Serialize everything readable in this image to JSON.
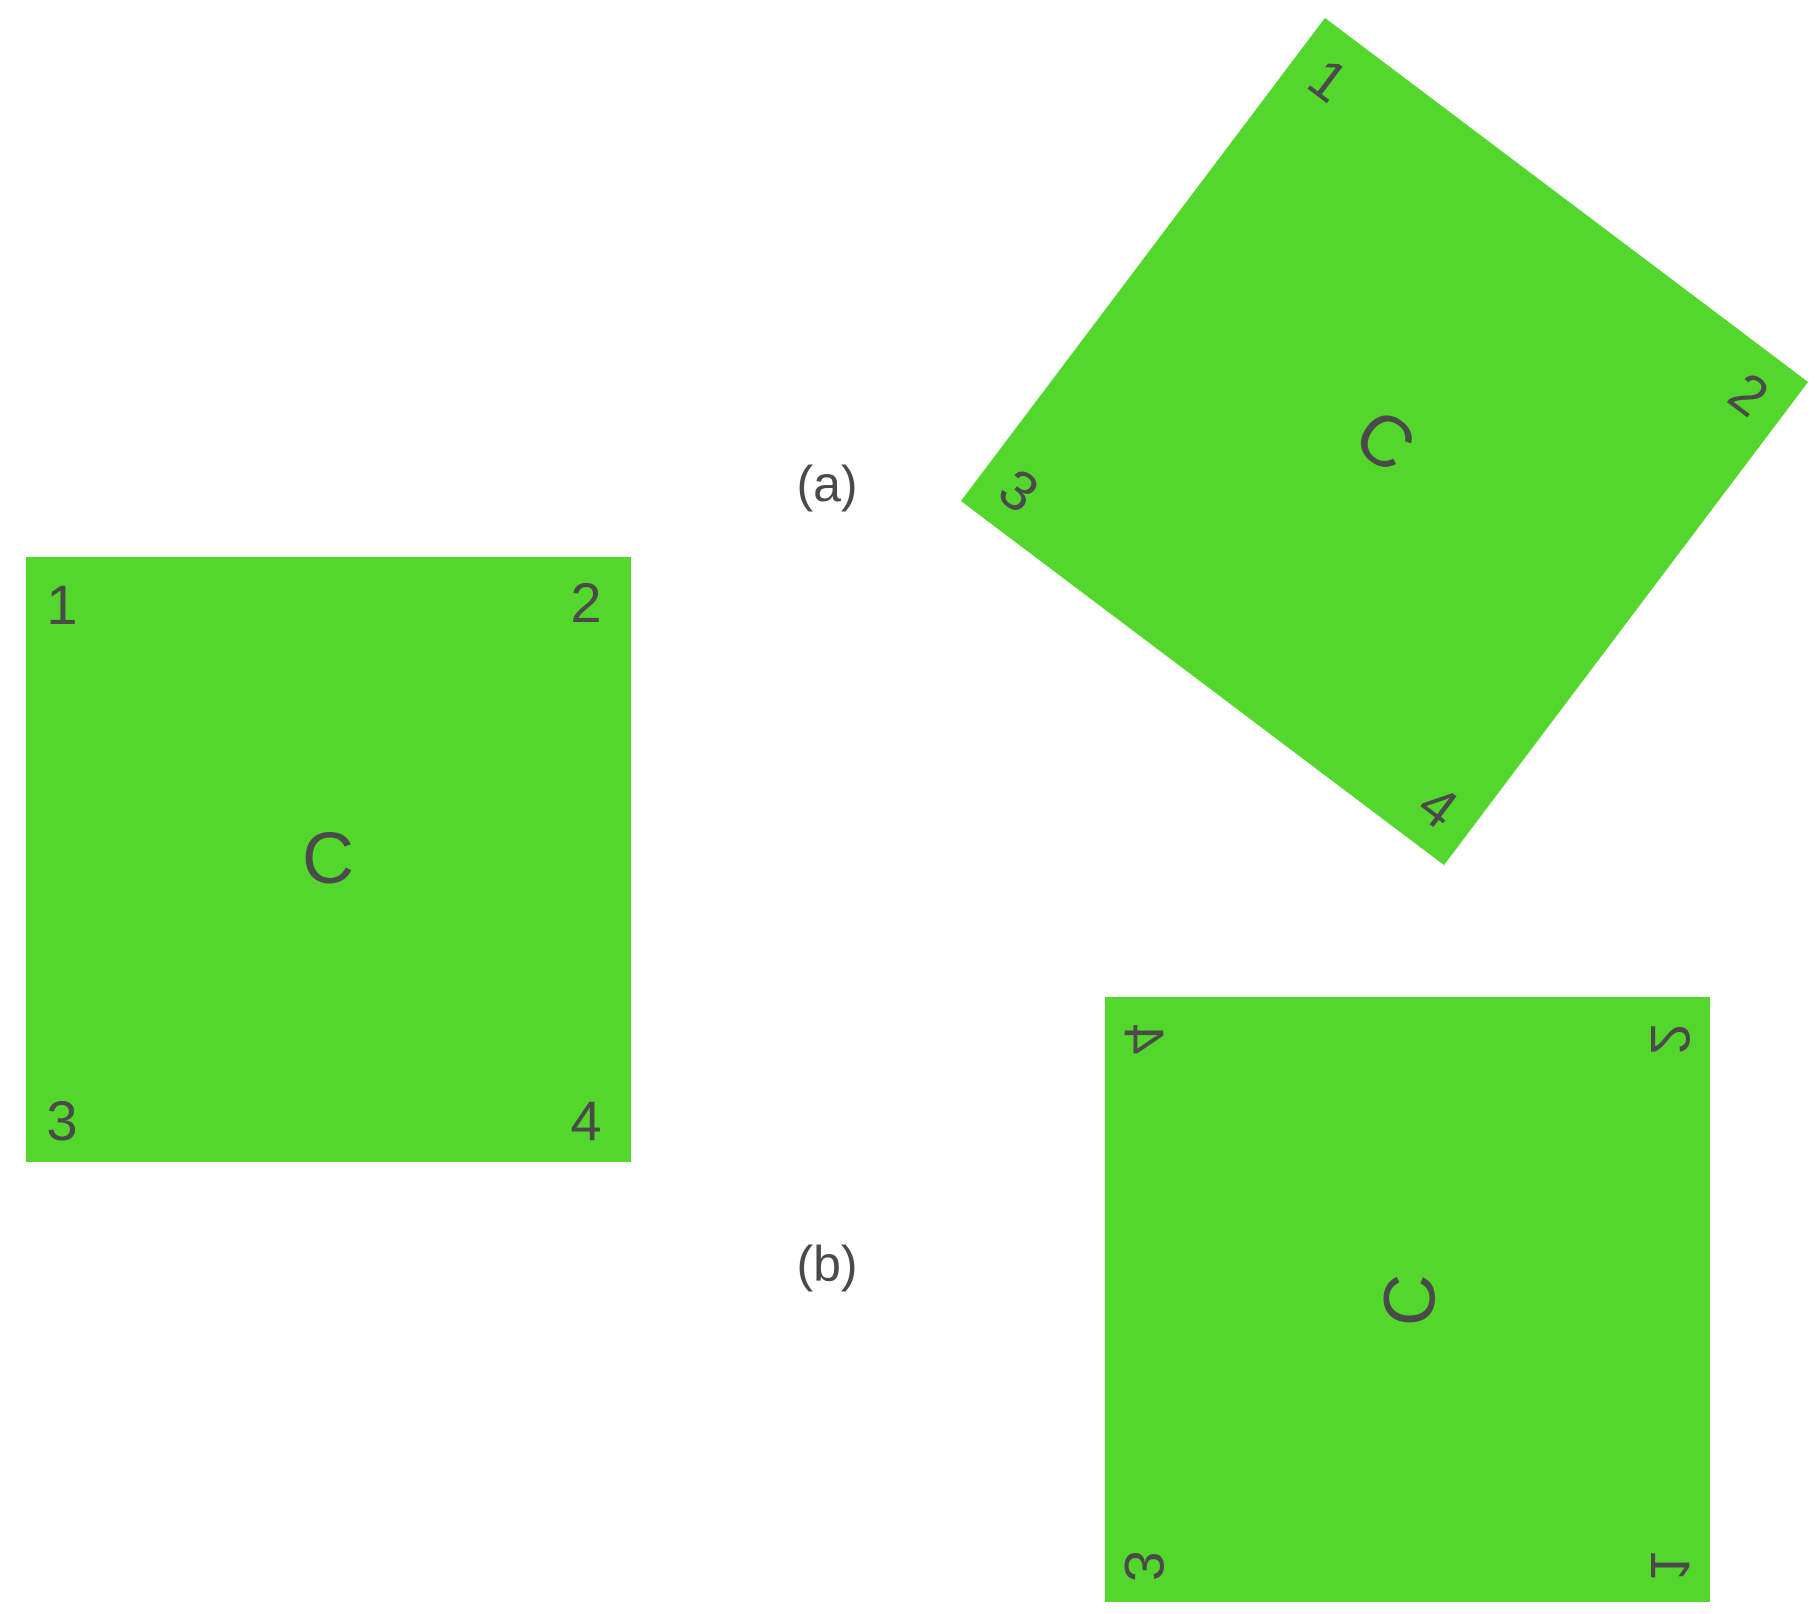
{
  "colors": {
    "square_fill": "#54d72c",
    "text": "#4a4a4a",
    "background": "#ffffff"
  },
  "captions": {
    "a": "(a)",
    "b": "(b)"
  },
  "squares": {
    "original": {
      "center": "C",
      "corner_1": "1",
      "corner_2": "2",
      "corner_3": "3",
      "corner_4": "4"
    },
    "rotated": {
      "center": "C",
      "corner_1": "1",
      "corner_2": "2",
      "corner_3": "3",
      "corner_4": "4"
    },
    "transposed": {
      "center": "C",
      "corner_1": "1",
      "corner_2": "2",
      "corner_3": "3",
      "corner_4": "4"
    }
  }
}
